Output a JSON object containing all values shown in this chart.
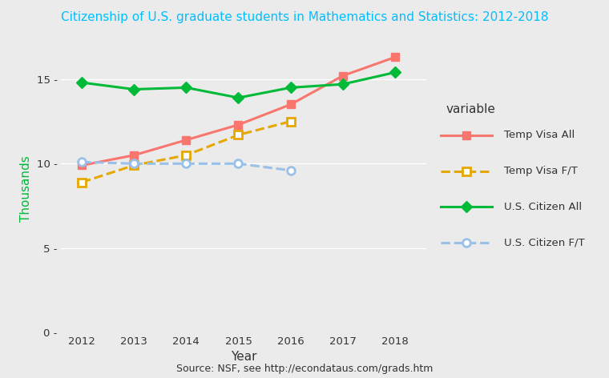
{
  "years": [
    2012,
    2013,
    2014,
    2015,
    2016,
    2017,
    2018
  ],
  "temp_visa_all": [
    9.9,
    10.5,
    11.4,
    12.3,
    13.5,
    15.2,
    16.3
  ],
  "temp_visa_ft": [
    8.9,
    9.9,
    10.5,
    11.7,
    12.5,
    null,
    null
  ],
  "us_citizen_all": [
    14.8,
    14.4,
    14.5,
    13.9,
    14.5,
    14.7,
    15.4
  ],
  "us_citizen_ft": [
    10.1,
    10.0,
    10.0,
    10.0,
    9.6,
    null,
    null
  ],
  "title": "Citizenship of U.S. graduate students in Mathematics and Statistics: 2012-2018",
  "xlabel": "Year",
  "ylabel": "Thousands",
  "source": "Source: NSF, see http://econdataus.com/grads.htm",
  "ylim": [
    0,
    17
  ],
  "yticks": [
    0,
    5,
    10,
    15
  ],
  "bg_color": "#ebebeb",
  "grid_color": "#ffffff",
  "temp_visa_all_color": "#F8766D",
  "temp_visa_ft_color": "#E6A800",
  "us_citizen_all_color": "#00BA38",
  "us_citizen_ft_color": "#99C0E8",
  "title_color": "#00BFFF",
  "axis_label_color": "#333333",
  "tick_label_color": "#333333",
  "legend_title": "variable",
  "legend_text_color": "#333333"
}
